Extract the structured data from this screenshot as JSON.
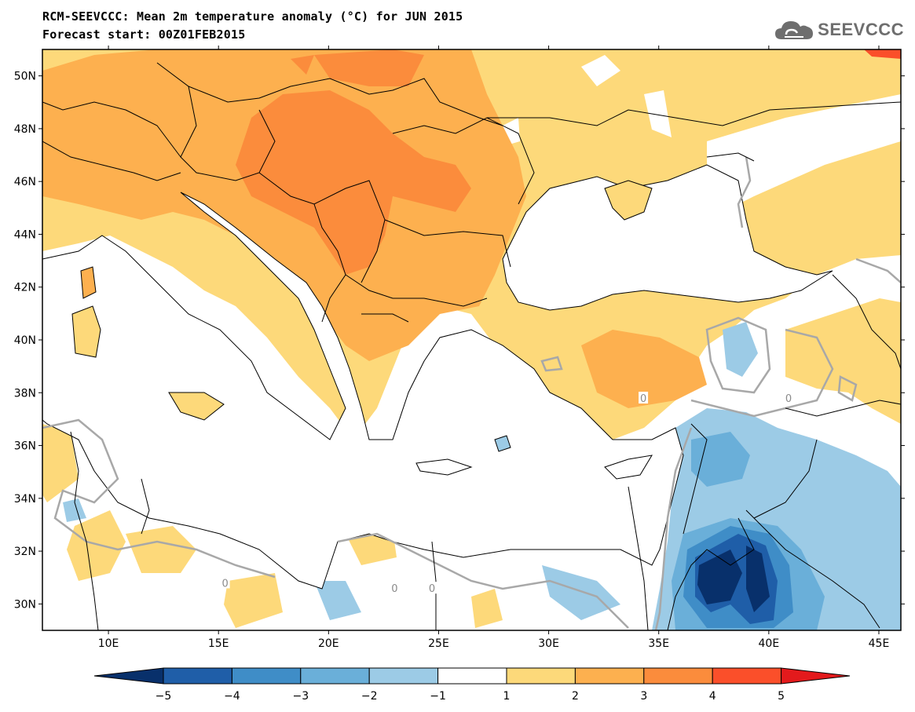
{
  "title_line1": "RCM-SEEVCCC: Mean 2m temperature anomaly (°C) for JUN 2015",
  "title_line2": "Forecast start: 00Z01FEB2015",
  "logo": {
    "text": "SEEVCCC",
    "icon": "cloud-icon"
  },
  "map": {
    "lon_range": [
      7,
      46
    ],
    "lat_range": [
      29,
      51
    ],
    "lon_ticks": [
      {
        "value": 10,
        "label": "10E"
      },
      {
        "value": 15,
        "label": "15E"
      },
      {
        "value": 20,
        "label": "20E"
      },
      {
        "value": 25,
        "label": "25E"
      },
      {
        "value": 30,
        "label": "30E"
      },
      {
        "value": 35,
        "label": "35E"
      },
      {
        "value": 40,
        "label": "40E"
      },
      {
        "value": 45,
        "label": "45E"
      }
    ],
    "lat_ticks": [
      {
        "value": 30,
        "label": "30N"
      },
      {
        "value": 32,
        "label": "32N"
      },
      {
        "value": 34,
        "label": "34N"
      },
      {
        "value": 36,
        "label": "36N"
      },
      {
        "value": 38,
        "label": "38N"
      },
      {
        "value": 40,
        "label": "40N"
      },
      {
        "value": 42,
        "label": "42N"
      },
      {
        "value": 44,
        "label": "44N"
      },
      {
        "value": 46,
        "label": "46N"
      },
      {
        "value": 48,
        "label": "48N"
      },
      {
        "value": 50,
        "label": "50N"
      }
    ],
    "contour_zero_label": "0"
  },
  "colorbar": {
    "labels": [
      "−5",
      "−4",
      "−3",
      "−2",
      "−1",
      "1",
      "2",
      "3",
      "4",
      "5"
    ],
    "under_color": "#08306b",
    "over_color": "#e31a1c",
    "colors": [
      "#1f5ea8",
      "#3f8dc7",
      "#6aafd9",
      "#9ccbe6",
      "#ffffff",
      "#fdd97a",
      "#fdb04f",
      "#fb8c3c",
      "#fb4f2a"
    ]
  },
  "colors": {
    "c2": "#fdb04f",
    "c3": "#fb8c3c",
    "c1": "#fdd97a",
    "cm1": "#9ccbe6",
    "cm2": "#6aafd9",
    "cm3": "#3f8dc7",
    "cm4": "#1f5ea8",
    "cm5": "#08306b",
    "c4": "#fb4f2a"
  }
}
